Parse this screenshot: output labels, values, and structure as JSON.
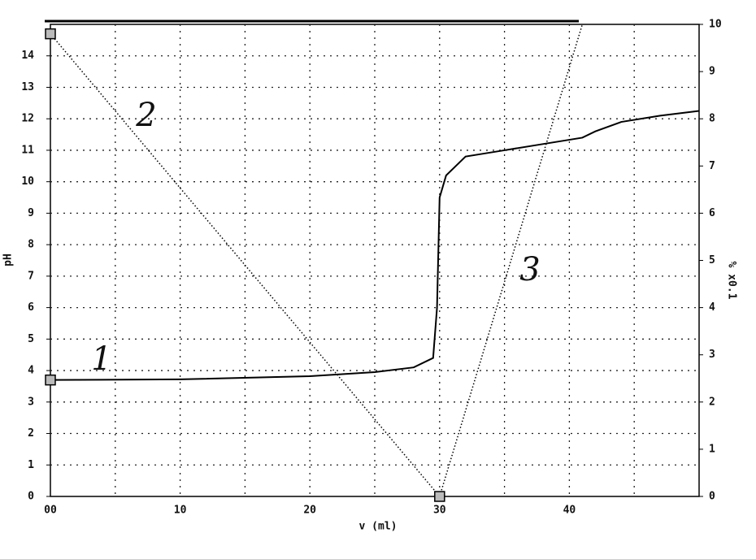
{
  "chart_data": {
    "type": "line",
    "x_label": "v  (ml)",
    "y_label": "pH",
    "y2_label": "% x0.1",
    "annotations": [
      "1",
      "2",
      "3"
    ],
    "xlim": [
      0,
      50
    ],
    "xticks": [
      {
        "value": 0,
        "label": "00"
      },
      10,
      20,
      30,
      40
    ],
    "x_minor_grid": [
      5,
      15,
      25,
      35,
      45
    ],
    "ylim": [
      0,
      15
    ],
    "yticks": [
      0,
      1,
      2,
      3,
      4,
      5,
      6,
      7,
      8,
      9,
      10,
      11,
      12,
      13,
      14
    ],
    "y2lim": [
      0,
      10
    ],
    "y2ticks": [
      0,
      1,
      2,
      3,
      4,
      5,
      6,
      7,
      8,
      9,
      10
    ],
    "grid": true,
    "series": [
      {
        "name": "1",
        "color": "#000000",
        "style": "solid",
        "x": [
          0,
          10,
          20,
          25,
          28,
          29.5,
          29.8,
          30,
          30.5,
          32,
          35,
          38,
          41,
          42,
          44,
          47,
          50
        ],
        "values": [
          3.7,
          3.72,
          3.82,
          3.95,
          4.1,
          4.4,
          6,
          9.5,
          10.2,
          10.8,
          11.0,
          11.2,
          11.4,
          11.6,
          11.9,
          12.1,
          12.25
        ]
      },
      {
        "name": "2",
        "color": "#000000",
        "style": "dotted",
        "axis": "y2",
        "x": [
          0,
          30
        ],
        "values": [
          9.8,
          0
        ]
      },
      {
        "name": "3",
        "color": "#000000",
        "style": "dotted",
        "axis": "y2",
        "x": [
          30,
          41
        ],
        "values": [
          0,
          10
        ]
      }
    ]
  }
}
